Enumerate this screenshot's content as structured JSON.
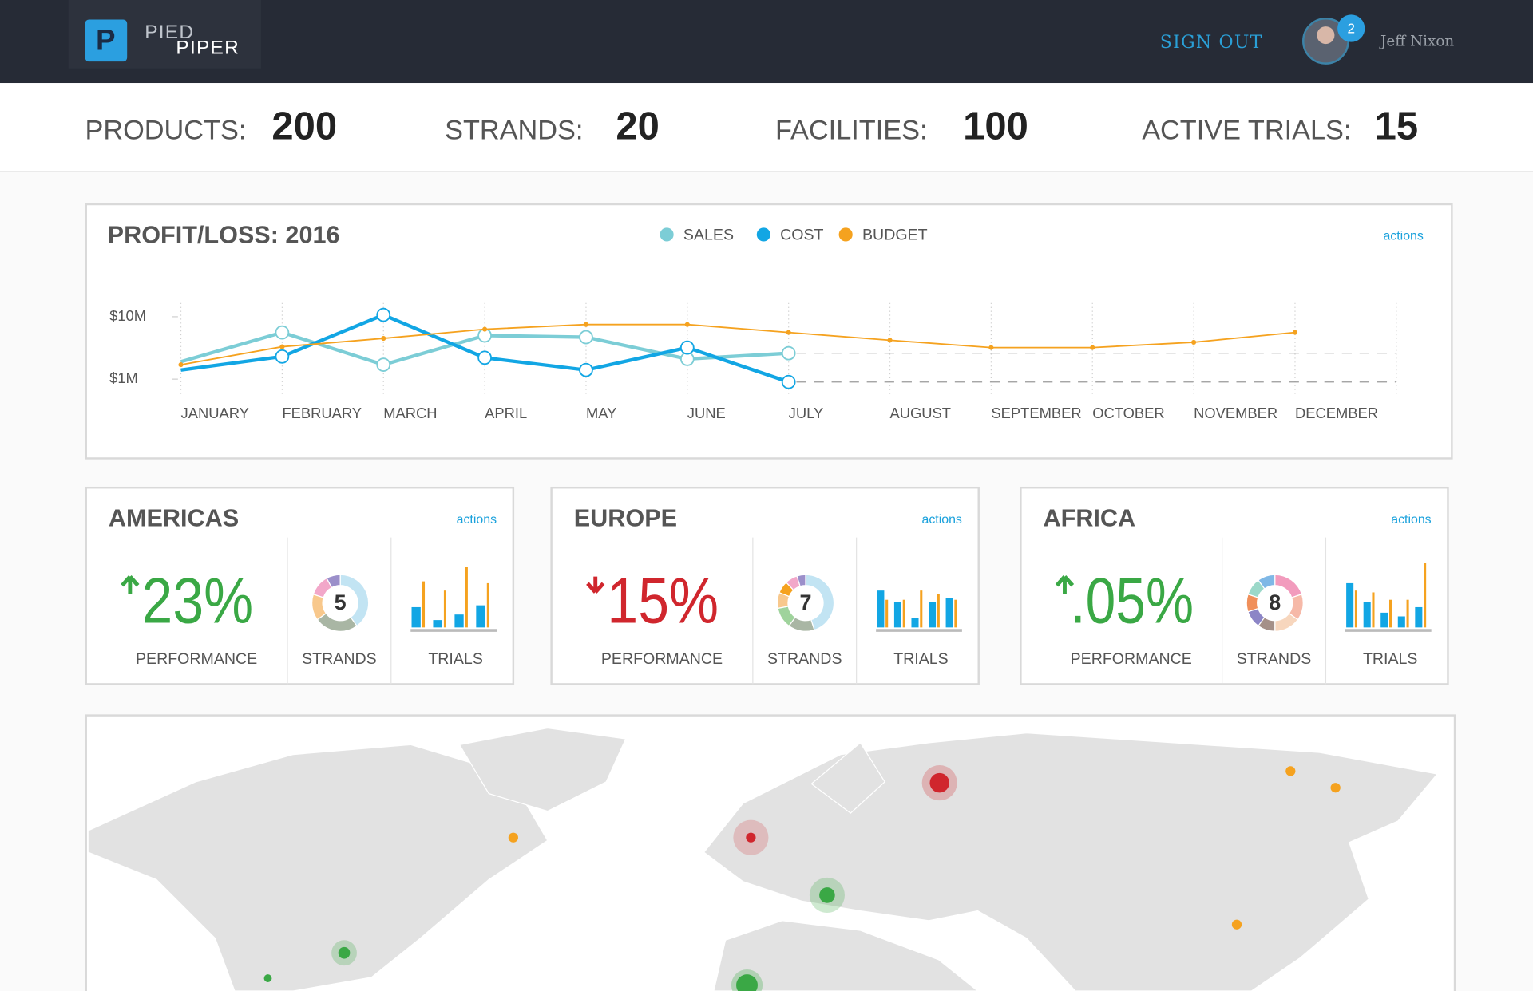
{
  "header": {
    "logo": {
      "top": "PIED",
      "bottom": "PIPER"
    },
    "sign_out": "SIGN OUT",
    "notifications": "2",
    "user": "Jeff Nixon"
  },
  "stats": [
    {
      "label": "PRODUCTS:",
      "value": "200"
    },
    {
      "label": "STRANDS:",
      "value": "20"
    },
    {
      "label": "FACILITIES:",
      "value": "100"
    },
    {
      "label": "ACTIVE TRIALS:",
      "value": "15"
    }
  ],
  "profit_chart": {
    "type": "line",
    "title": "PROFIT/LOSS: 2016",
    "actions": "actions",
    "categories": [
      "JANUARY",
      "FEBRUARY",
      "MARCH",
      "APRIL",
      "MAY",
      "JUNE",
      "JULY",
      "AUGUST",
      "SEPTEMBER",
      "OCTOBER",
      "NOVEMBER",
      "DECEMBER"
    ],
    "series": [
      {
        "name": "SALES",
        "color": "#7ccdd6",
        "values": [
          1.9,
          5.6,
          1.7,
          5.0,
          4.7,
          2.1,
          2.6,
          null,
          null,
          null,
          null,
          null
        ]
      },
      {
        "name": "COST",
        "color": "#12a6e4",
        "values": [
          1.4,
          2.3,
          10.7,
          2.2,
          1.4,
          3.2,
          0.9,
          null,
          null,
          null,
          null,
          null
        ]
      },
      {
        "name": "BUDGET",
        "color": "#f5a21f",
        "values": [
          1.7,
          3.3,
          4.5,
          6.3,
          7.5,
          7.5,
          5.6,
          4.2,
          3.2,
          3.2,
          3.9,
          5.6
        ]
      }
    ],
    "log_scale": true,
    "ylim": [
      0.54,
      16.6
    ],
    "yticks": [
      {
        "value": 10,
        "label": "$10M"
      },
      {
        "value": 1,
        "label": "$1M"
      }
    ]
  },
  "regions": [
    {
      "name": "AMERICAS",
      "actions": "actions",
      "trend": "up",
      "color": "#3aa845",
      "performance": "23%",
      "performance_label": "PERFORMANCE",
      "strands": {
        "value": "5",
        "segments": [
          {
            "color": "#c2e4f3",
            "value": 40
          },
          {
            "color": "#a9b6a4",
            "value": 25
          },
          {
            "color": "#f8c88c",
            "value": 15
          },
          {
            "color": "#f2a7c9",
            "value": 12
          },
          {
            "color": "#9b8fca",
            "value": 8
          }
        ]
      },
      "strands_label": "STRANDS",
      "trials_label": "TRIALS",
      "trials": [
        {
          "color": "#12a6e4",
          "values": [
            22,
            8,
            14,
            24
          ]
        },
        {
          "color": "#f5a21f",
          "values": [
            50,
            40,
            66,
            48
          ]
        }
      ]
    },
    {
      "name": "EUROPE",
      "actions": "actions",
      "trend": "down",
      "color": "#d0262d",
      "performance": "15%",
      "performance_label": "PERFORMANCE",
      "strands": {
        "value": "7",
        "segments": [
          {
            "color": "#c2e4f3",
            "value": 45
          },
          {
            "color": "#a9b6a4",
            "value": 15
          },
          {
            "color": "#9fd39c",
            "value": 12
          },
          {
            "color": "#f8c88c",
            "value": 9
          },
          {
            "color": "#f5a21f",
            "value": 7
          },
          {
            "color": "#f2a7c9",
            "value": 7
          },
          {
            "color": "#9b8fca",
            "value": 5
          }
        ]
      },
      "strands_label": "STRANDS",
      "trials_label": "TRIALS",
      "trials": [
        {
          "color": "#12a6e4",
          "values": [
            40,
            28,
            10,
            28,
            32
          ]
        },
        {
          "color": "#f5a21f",
          "values": [
            30,
            30,
            40,
            36,
            30
          ]
        }
      ]
    },
    {
      "name": "AFRICA",
      "actions": "actions",
      "trend": "up",
      "color": "#3aa845",
      "performance": ".05%",
      "performance_label": "PERFORMANCE",
      "strands": {
        "value": "8",
        "segments": [
          {
            "color": "#f29bbd",
            "value": 20
          },
          {
            "color": "#f6b9a8",
            "value": 15
          },
          {
            "color": "#f7d6bd",
            "value": 15
          },
          {
            "color": "#a59088",
            "value": 10
          },
          {
            "color": "#8c85c6",
            "value": 10
          },
          {
            "color": "#f08f5a",
            "value": 10
          },
          {
            "color": "#9bd8c9",
            "value": 10
          },
          {
            "color": "#7fb8e6",
            "value": 10
          }
        ]
      },
      "strands_label": "STRANDS",
      "trials_label": "TRIALS",
      "trials": [
        {
          "color": "#12a6e4",
          "values": [
            48,
            28,
            16,
            12,
            22
          ]
        },
        {
          "color": "#f5a21f",
          "values": [
            40,
            38,
            30,
            30,
            70
          ]
        }
      ]
    }
  ]
}
